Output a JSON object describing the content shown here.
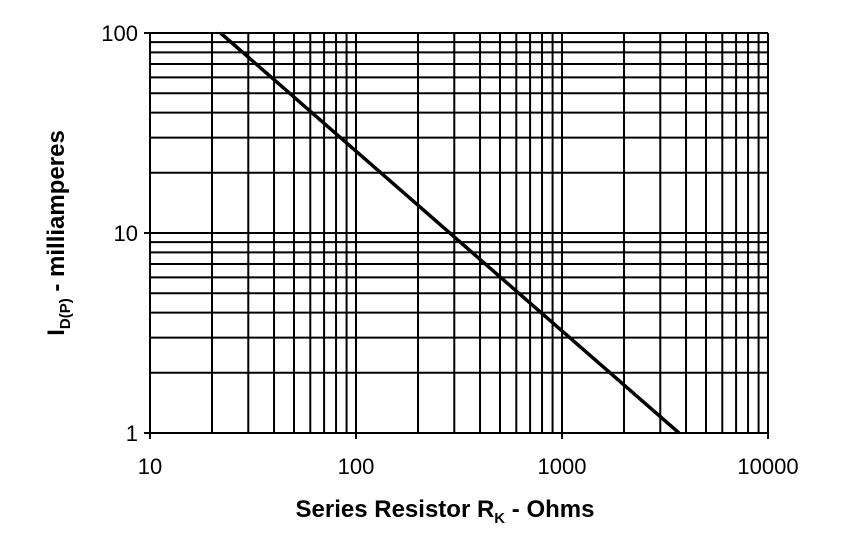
{
  "chart_data": {
    "type": "line",
    "x_label": {
      "main": "Series Resistor R",
      "sub": "K",
      "rest": " - Ohms"
    },
    "y_label": {
      "main": "I",
      "sub": "D(P)",
      "rest": " - milliamperes"
    },
    "x_log": true,
    "y_log": true,
    "grid": true,
    "xlim": [
      10,
      10000
    ],
    "ylim": [
      1,
      100
    ],
    "xticks": [
      10,
      100,
      1000,
      10000
    ],
    "yticks": [
      1,
      10,
      100
    ],
    "xminor_ticks": [
      20,
      30,
      40,
      50,
      60,
      70,
      80,
      90,
      200,
      300,
      400,
      500,
      600,
      700,
      800,
      900,
      2000,
      3000,
      4000,
      5000,
      6000,
      7000,
      8000,
      9000
    ],
    "yminor_ticks": [
      2,
      3,
      4,
      5,
      6,
      7,
      8,
      9,
      20,
      30,
      40,
      50,
      60,
      70,
      80,
      90
    ],
    "series": [
      {
        "color": "#000000",
        "x": [
          22,
          3700
        ],
        "values": [
          100,
          1
        ]
      }
    ]
  }
}
